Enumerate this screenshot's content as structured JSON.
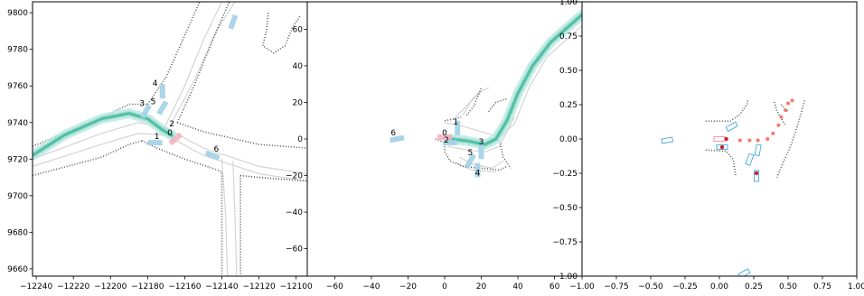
{
  "chart_data": [
    {
      "type": "scatter",
      "title": "",
      "xlabel": "",
      "ylabel": "",
      "xlim": [
        -12242,
        -12094
      ],
      "ylim": [
        9656,
        9806
      ],
      "x_ticks": [
        -12240,
        -12220,
        -12200,
        -12180,
        -12160,
        -12140,
        -12120,
        -12100
      ],
      "y_ticks": [
        9660,
        9680,
        9700,
        9720,
        9740,
        9760,
        9780,
        9800
      ],
      "x_tick_labels": [
        "−12240",
        "−12220",
        "−12200",
        "−12180",
        "−12160",
        "−12140",
        "−12120",
        "−12100"
      ],
      "y_tick_labels": [
        "9660",
        "9680",
        "9700",
        "9720",
        "9740",
        "9760",
        "9780",
        "9800"
      ],
      "grid": false,
      "agent_labels": [
        {
          "text": "0",
          "x": -12168,
          "y": 9733
        },
        {
          "text": "1",
          "x": -12175,
          "y": 9731
        },
        {
          "text": "2",
          "x": -12167,
          "y": 9738
        },
        {
          "text": "3",
          "x": -12183,
          "y": 9749
        },
        {
          "text": "4",
          "x": -12176,
          "y": 9760
        },
        {
          "text": "5",
          "x": -12177,
          "y": 9750
        },
        {
          "text": "6",
          "x": -12143,
          "y": 9724
        }
      ],
      "trajectory": [
        [
          -12242,
          9722
        ],
        [
          -12225,
          9733
        ],
        [
          -12205,
          9742
        ],
        [
          -12190,
          9745
        ],
        [
          -12180,
          9742
        ],
        [
          -12172,
          9736
        ],
        [
          -12167,
          9733
        ]
      ],
      "vehicles": [
        {
          "x": -12176,
          "y": 9729,
          "angle": 0
        },
        {
          "x": -12165,
          "y": 9731,
          "angle": 40
        },
        {
          "x": -12181,
          "y": 9746,
          "angle": 60
        },
        {
          "x": -12172,
          "y": 9757,
          "angle": 90
        },
        {
          "x": -12172,
          "y": 9748,
          "angle": 60
        },
        {
          "x": -12145,
          "y": 9722,
          "angle": -20
        },
        {
          "x": -12134,
          "y": 9795,
          "angle": 70
        }
      ],
      "lanes": [
        [
          [
            -12242,
            9720
          ],
          [
            -12205,
            9734
          ],
          [
            -12185,
            9740
          ],
          [
            -12170,
            9737
          ],
          [
            -12150,
            9726
          ],
          [
            -12120,
            9716
          ],
          [
            -12094,
            9712
          ]
        ],
        [
          [
            -12242,
            9716
          ],
          [
            -12205,
            9728
          ],
          [
            -12185,
            9734
          ],
          [
            -12170,
            9733
          ],
          [
            -12150,
            9722
          ],
          [
            -12120,
            9712
          ],
          [
            -12094,
            9708
          ]
        ],
        [
          [
            -12172,
            9735
          ],
          [
            -12160,
            9760
          ],
          [
            -12150,
            9785
          ],
          [
            -12140,
            9806
          ]
        ],
        [
          [
            -12168,
            9738
          ],
          [
            -12154,
            9765
          ],
          [
            -12143,
            9790
          ],
          [
            -12133,
            9806
          ]
        ],
        [
          [
            -12140,
            9720
          ],
          [
            -12138,
            9690
          ],
          [
            -12137,
            9656
          ]
        ],
        [
          [
            -12134,
            9719
          ],
          [
            -12133,
            9690
          ],
          [
            -12132,
            9656
          ]
        ]
      ],
      "boundaries": [
        [
          [
            -12242,
            9711
          ],
          [
            -12205,
            9721
          ],
          [
            -12190,
            9728
          ],
          [
            -12183,
            9730
          ]
        ],
        [
          [
            -12242,
            9727
          ],
          [
            -12210,
            9740
          ],
          [
            -12190,
            9750
          ],
          [
            -12180,
            9750
          ]
        ],
        [
          [
            -12183,
            9730
          ],
          [
            -12175,
            9726
          ],
          [
            -12160,
            9720
          ],
          [
            -12145,
            9715
          ],
          [
            -12140,
            9713
          ],
          [
            -12140,
            9656
          ]
        ],
        [
          [
            -12130,
            9711
          ],
          [
            -12120,
            9710
          ],
          [
            -12094,
            9708
          ]
        ],
        [
          [
            -12130,
            9711
          ],
          [
            -12130,
            9656
          ]
        ],
        [
          [
            -12164,
            9740
          ],
          [
            -12150,
            9735
          ],
          [
            -12120,
            9728
          ],
          [
            -12094,
            9726
          ]
        ],
        [
          [
            -12180,
            9750
          ],
          [
            -12170,
            9765
          ],
          [
            -12162,
            9783
          ],
          [
            -12152,
            9806
          ]
        ],
        [
          [
            -12164,
            9740
          ],
          [
            -12155,
            9760
          ],
          [
            -12145,
            9785
          ],
          [
            -12136,
            9806
          ]
        ],
        [
          [
            -12115,
            9800
          ],
          [
            -12116,
            9790
          ],
          [
            -12118,
            9782
          ],
          [
            -12112,
            9778
          ],
          [
            -12106,
            9782
          ],
          [
            -12102,
            9792
          ],
          [
            -12098,
            9798
          ]
        ]
      ]
    },
    {
      "type": "scatter",
      "title": "",
      "xlabel": "",
      "ylabel": "",
      "xlim": [
        -75,
        75
      ],
      "ylim": [
        -75,
        75
      ],
      "x_ticks": [
        -60,
        -40,
        -20,
        0,
        20,
        40,
        60
      ],
      "y_ticks": [
        -60,
        -40,
        -20,
        0,
        20,
        40,
        60
      ],
      "x_tick_labels": [
        "−60",
        "−40",
        "−20",
        "0",
        "20",
        "40",
        "60"
      ],
      "y_tick_labels": [
        "−60",
        "−40",
        "−20",
        "0",
        "20",
        "40",
        "60"
      ],
      "grid": false,
      "agent_labels": [
        {
          "text": "0",
          "x": 0,
          "y": 2
        },
        {
          "text": "1",
          "x": 6,
          "y": 8
        },
        {
          "text": "2",
          "x": 1,
          "y": -2
        },
        {
          "text": "3",
          "x": 20,
          "y": -3
        },
        {
          "text": "4",
          "x": 18,
          "y": -20
        },
        {
          "text": "5",
          "x": 14,
          "y": -9
        },
        {
          "text": "6",
          "x": -28,
          "y": 2
        }
      ],
      "trajectory": [
        [
          3,
          0
        ],
        [
          12,
          -1
        ],
        [
          22,
          -3
        ],
        [
          28,
          0
        ],
        [
          34,
          10
        ],
        [
          40,
          25
        ],
        [
          48,
          40
        ],
        [
          58,
          53
        ],
        [
          75,
          68
        ]
      ],
      "vehicles": [
        {
          "x": 7,
          "y": 6,
          "angle": 90
        },
        {
          "x": 3,
          "y": -2,
          "angle": 0
        },
        {
          "x": 20,
          "y": -7,
          "angle": 90
        },
        {
          "x": 18,
          "y": -17,
          "angle": 90
        },
        {
          "x": 14,
          "y": -12,
          "angle": 60
        },
        {
          "x": -26,
          "y": 0,
          "angle": 10
        },
        {
          "x": 0,
          "y": 1,
          "angle": 0
        }
      ],
      "lanes": [
        [
          [
            0,
            9
          ],
          [
            10,
            7
          ],
          [
            20,
            4
          ],
          [
            30,
            1
          ],
          [
            38,
            8
          ],
          [
            46,
            28
          ],
          [
            56,
            45
          ],
          [
            75,
            62
          ]
        ],
        [
          [
            2,
            -4
          ],
          [
            12,
            -6
          ],
          [
            22,
            -7
          ],
          [
            30,
            -4
          ],
          [
            38,
            12
          ]
        ],
        [
          [
            6,
            12
          ],
          [
            12,
            18
          ],
          [
            18,
            25
          ],
          [
            24,
            28
          ]
        ],
        [
          [
            10,
            13
          ],
          [
            14,
            20
          ],
          [
            20,
            26
          ]
        ],
        [
          [
            8,
            -10
          ],
          [
            16,
            -14
          ],
          [
            26,
            -16
          ],
          [
            32,
            -12
          ]
        ],
        [
          [
            6,
            -13
          ],
          [
            15,
            -17
          ],
          [
            28,
            -18
          ]
        ]
      ],
      "boundaries": [
        [
          [
            0,
            10
          ],
          [
            5,
            11
          ],
          [
            9,
            12
          ]
        ],
        [
          [
            12,
            13
          ],
          [
            16,
            18
          ],
          [
            20,
            28
          ]
        ],
        [
          [
            -5,
            0
          ],
          [
            0,
            -2
          ],
          [
            0,
            -7
          ],
          [
            3,
            -12
          ],
          [
            10,
            -15
          ],
          [
            20,
            -16
          ],
          [
            30,
            -17
          ],
          [
            34,
            -15
          ]
        ],
        [
          [
            24,
            15
          ],
          [
            28,
            20
          ],
          [
            34,
            22
          ]
        ],
        [
          [
            30,
            -1
          ],
          [
            32,
            -10
          ],
          [
            36,
            -16
          ]
        ]
      ]
    },
    {
      "type": "scatter",
      "title": "",
      "xlabel": "",
      "ylabel": "",
      "xlim": [
        -1.0,
        1.0
      ],
      "ylim": [
        -1.0,
        1.0
      ],
      "x_ticks": [
        -1.0,
        -0.75,
        -0.5,
        -0.25,
        0.0,
        0.25,
        0.5,
        0.75,
        1.0
      ],
      "y_ticks": [
        -1.0,
        -0.75,
        -0.5,
        -0.25,
        0.0,
        0.25,
        0.5,
        0.75,
        1.0
      ],
      "x_tick_labels": [
        "−1.00",
        "−0.75",
        "−0.50",
        "−0.25",
        "0.00",
        "0.25",
        "0.50",
        "0.75",
        "1.00"
      ],
      "y_tick_labels": [
        "−1.00",
        "−0.75",
        "−0.50",
        "−0.25",
        "0.00",
        "0.25",
        "0.50",
        "0.75",
        "1.00"
      ],
      "grid": false,
      "agent_labels": [],
      "trajectory": [
        [
          0.05,
          0.0
        ],
        [
          0.15,
          -0.01
        ],
        [
          0.22,
          -0.01
        ],
        [
          0.28,
          -0.01
        ],
        [
          0.35,
          0.0
        ],
        [
          0.39,
          0.04
        ],
        [
          0.43,
          0.1
        ],
        [
          0.45,
          0.16
        ],
        [
          0.48,
          0.21
        ],
        [
          0.5,
          0.26
        ],
        [
          0.53,
          0.28
        ]
      ],
      "vehicles": [
        {
          "x": 0.0,
          "y": 0.0,
          "angle": 0
        },
        {
          "x": 0.09,
          "y": 0.09,
          "angle": 30
        },
        {
          "x": 0.02,
          "y": -0.06,
          "angle": 0
        },
        {
          "x": 0.28,
          "y": -0.08,
          "angle": 80
        },
        {
          "x": 0.22,
          "y": -0.15,
          "angle": 70
        },
        {
          "x": 0.27,
          "y": -0.27,
          "angle": 90
        },
        {
          "x": -0.38,
          "y": -0.01,
          "angle": 10
        },
        {
          "x": 0.18,
          "y": -0.98,
          "angle": 30
        }
      ],
      "red_dots": [
        [
          0.05,
          0.0
        ],
        [
          0.02,
          -0.06
        ],
        [
          0.27,
          -0.25
        ]
      ],
      "boundaries": [
        [
          [
            -0.1,
            0.13
          ],
          [
            0.0,
            0.13
          ],
          [
            0.08,
            0.13
          ],
          [
            0.15,
            0.18
          ],
          [
            0.2,
            0.25
          ],
          [
            0.21,
            0.29
          ]
        ],
        [
          [
            0.4,
            0.27
          ],
          [
            0.42,
            0.2
          ],
          [
            0.45,
            0.15
          ],
          [
            0.48,
            0.1
          ]
        ],
        [
          [
            0.62,
            0.28
          ],
          [
            0.57,
            0.1
          ],
          [
            0.52,
            -0.05
          ],
          [
            0.46,
            -0.18
          ],
          [
            0.42,
            -0.28
          ]
        ],
        [
          [
            -0.1,
            -0.08
          ],
          [
            0.05,
            -0.09
          ],
          [
            0.1,
            -0.15
          ],
          [
            0.12,
            -0.27
          ]
        ],
        [
          [
            0.45,
            0.25
          ],
          [
            0.5,
            0.2
          ]
        ]
      ]
    }
  ]
}
